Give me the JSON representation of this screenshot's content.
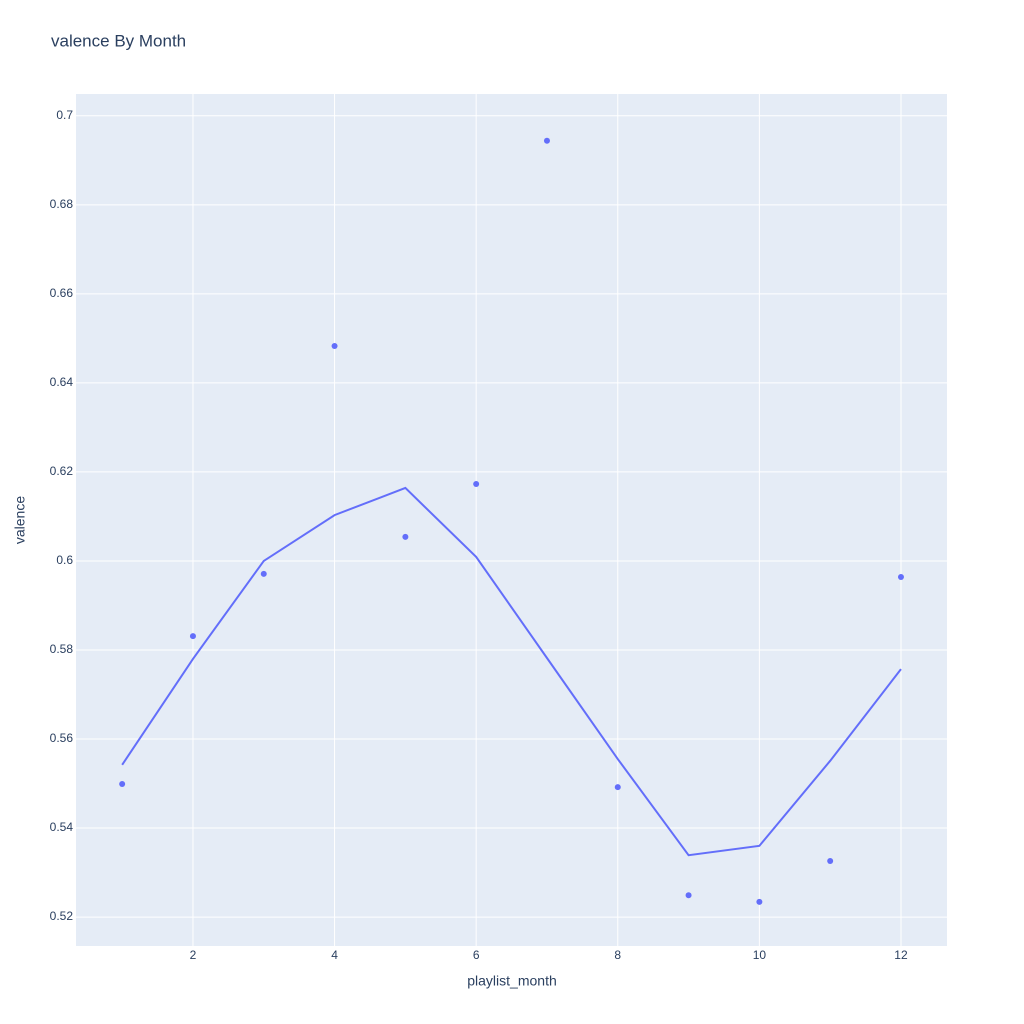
{
  "chart_data": {
    "type": "scatter",
    "title": "valence By Month",
    "x_label": "playlist_month",
    "y_label": "valence",
    "x": [
      1,
      2,
      3,
      4,
      5,
      6,
      7,
      8,
      9,
      10,
      11,
      12
    ],
    "series": [
      {
        "mode": "markers",
        "color": "#636efa",
        "values": [
          0.5499,
          0.5831,
          0.5971,
          0.6483,
          0.6054,
          0.6173,
          0.6944,
          0.5492,
          0.5249,
          0.5234,
          0.5326,
          0.5964
        ]
      },
      {
        "mode": "lines",
        "color": "#636efa",
        "values": [
          0.5542,
          0.578,
          0.6,
          0.6103,
          0.6164,
          0.6009,
          0.5782,
          0.5555,
          0.5339,
          0.536,
          0.5551,
          0.5757
        ]
      }
    ],
    "xlim": [
      0.348,
      12.65
    ],
    "ylim": [
      0.5135,
      0.7049
    ],
    "xticks": [
      2,
      4,
      6,
      8,
      10,
      12
    ],
    "yticks": [
      0.52,
      0.54,
      0.56,
      0.58,
      0.6,
      0.62,
      0.64,
      0.66,
      0.68,
      0.7
    ],
    "grid": true,
    "background": "#e5ecf6"
  }
}
